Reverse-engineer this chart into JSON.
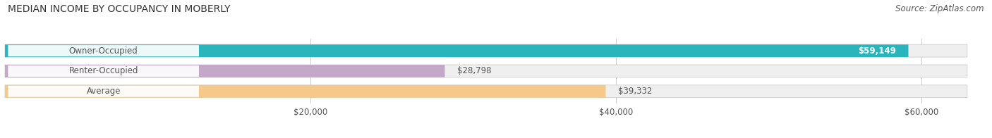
{
  "title": "MEDIAN INCOME BY OCCUPANCY IN MOBERLY",
  "source": "Source: ZipAtlas.com",
  "categories": [
    "Owner-Occupied",
    "Renter-Occupied",
    "Average"
  ],
  "values": [
    59149,
    28798,
    39332
  ],
  "bar_colors": [
    "#2ab5bd",
    "#c4a8c8",
    "#f5c98a"
  ],
  "bar_bg_color": "#efefef",
  "value_labels": [
    "$59,149",
    "$28,798",
    "$39,332"
  ],
  "value_label_inside": [
    true,
    false,
    false
  ],
  "xlim_data": [
    0,
    60000
  ],
  "xlim_display": [
    0,
    63000
  ],
  "xticks": [
    20000,
    40000,
    60000
  ],
  "xticklabels": [
    "$20,000",
    "$40,000",
    "$60,000"
  ],
  "title_fontsize": 10,
  "label_fontsize": 8.5,
  "tick_fontsize": 8.5,
  "source_fontsize": 8.5,
  "bar_height": 0.62,
  "bg_color": "#ffffff",
  "text_color": "#555555",
  "grid_color": "#cccccc"
}
